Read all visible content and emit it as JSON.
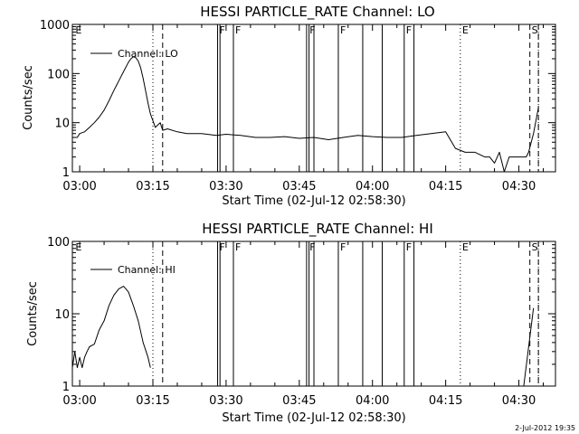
{
  "time_axis_ticks": [
    "03:00",
    "03:15",
    "03:30",
    "03:45",
    "04:00",
    "04:15",
    "04:30"
  ],
  "footer_timestamp": "2-Jul-2012 19:35",
  "chart_data": [
    {
      "type": "line",
      "title": "HESSI PARTICLE_RATE Channel: LO",
      "xlabel": "Start Time (02-Jul-12 02:58:30)",
      "ylabel": "Counts/sec",
      "yscale": "log",
      "ylim": [
        1,
        1000
      ],
      "y_tick_labels": [
        "1",
        "10",
        "100",
        "1000"
      ],
      "xlim": [
        "02:58:30",
        "04:37:30"
      ],
      "x_tick_labels": [
        "03:00",
        "03:15",
        "03:30",
        "03:45",
        "04:00",
        "04:15",
        "04:30"
      ],
      "legend_position": "top-left",
      "series": [
        {
          "name": "Channel: LO",
          "x": [
            "02:58:30",
            "02:59:30",
            "03:00:00",
            "03:01:00",
            "03:02:00",
            "03:03:00",
            "03:04:00",
            "03:05:00",
            "03:06:00",
            "03:07:00",
            "03:08:00",
            "03:09:00",
            "03:10:00",
            "03:10:30",
            "03:11:00",
            "03:11:30",
            "03:12:00",
            "03:12:30",
            "03:13:00",
            "03:13:30",
            "03:14:00",
            "03:14:30",
            "03:15:00",
            "03:15:30",
            "03:16:00",
            "03:16:30",
            "03:17:00",
            "03:18:00",
            "03:20:00",
            "03:22:00",
            "03:25:00",
            "03:28:00",
            "03:30:00",
            "03:33:00",
            "03:36:00",
            "03:39:00",
            "03:42:00",
            "03:45:00",
            "03:48:00",
            "03:51:00",
            "03:54:00",
            "03:57:00",
            "04:00:00",
            "04:03:00",
            "04:06:00",
            "04:09:00",
            "04:12:00",
            "04:15:00",
            "04:17:00",
            "04:19:00",
            "04:21:00",
            "04:23:00",
            "04:24:00",
            "04:25:00",
            "04:26:00",
            "04:27:00",
            "04:28:00",
            "04:30:00",
            "04:31:30",
            "04:32:00",
            "04:33:00",
            "04:34:00"
          ],
          "y": [
            5,
            5,
            6,
            6.5,
            8,
            10,
            13,
            18,
            28,
            45,
            70,
            110,
            170,
            200,
            220,
            210,
            180,
            130,
            80,
            45,
            25,
            15,
            11,
            8,
            9,
            10,
            7,
            7.5,
            6.5,
            6,
            6,
            5.5,
            5.8,
            5.5,
            5,
            5,
            5.2,
            4.8,
            5,
            4.5,
            5,
            5.5,
            5.2,
            5,
            5,
            5.5,
            6,
            6.5,
            3,
            2.5,
            2.5,
            2,
            2,
            1.5,
            2.5,
            1,
            2,
            2,
            2,
            2.5,
            6,
            20
          ]
        }
      ]
    },
    {
      "type": "line",
      "title": "HESSI PARTICLE_RATE Channel: HI",
      "xlabel": "Start Time (02-Jul-12 02:58:30)",
      "ylabel": "Counts/sec",
      "yscale": "log",
      "ylim": [
        1,
        100
      ],
      "y_tick_labels": [
        "1",
        "10",
        "100"
      ],
      "xlim": [
        "02:58:30",
        "04:37:30"
      ],
      "x_tick_labels": [
        "03:00",
        "03:15",
        "03:30",
        "03:45",
        "04:00",
        "04:15",
        "04:30"
      ],
      "legend_position": "top-left",
      "series": [
        {
          "name": "Channel: HI",
          "x": [
            "02:58:30",
            "02:59:00",
            "02:59:30",
            "03:00:00",
            "03:00:30",
            "03:01:00",
            "03:01:30",
            "03:02:00",
            "03:03:00",
            "03:04:00",
            "03:05:00",
            "03:06:00",
            "03:07:00",
            "03:08:00",
            "03:09:00",
            "03:10:00",
            "03:11:00",
            "03:12:00",
            "03:13:00",
            "03:14:00",
            "03:14:30"
          ],
          "y": [
            1.8,
            3,
            1.8,
            2.5,
            1.8,
            2.5,
            3,
            3.5,
            3.8,
            6,
            8,
            13,
            18,
            22,
            24,
            20,
            13,
            8,
            4,
            2.5,
            1.8
          ]
        },
        {
          "name": "Channel: HI",
          "x": [
            "04:31:00",
            "04:33:00"
          ],
          "y": [
            1,
            12
          ]
        }
      ]
    }
  ],
  "event_markers": {
    "flags": [
      {
        "label": "E",
        "time": "02:58:45"
      },
      {
        "label": "F",
        "time": "03:28:15"
      },
      {
        "label": "F",
        "time": "03:31:30"
      },
      {
        "label": "F",
        "time": "03:46:45"
      },
      {
        "label": "F",
        "time": "03:53:00"
      },
      {
        "label": "F",
        "time": "04:06:30"
      },
      {
        "label": "E",
        "time": "04:18:00"
      },
      {
        "label": "S",
        "time": "04:32:15"
      }
    ],
    "solid_lines": [
      "03:28:15",
      "03:28:45",
      "03:31:30",
      "03:46:30",
      "03:47:00",
      "03:48:00",
      "03:53:00",
      "03:58:00",
      "04:02:00",
      "04:06:30",
      "04:08:30"
    ],
    "dotted_lines": [
      "03:15:00",
      "04:18:00",
      "04:34:00"
    ],
    "dashed_lines": [
      "03:17:00",
      "04:32:15",
      "04:34:00"
    ]
  }
}
